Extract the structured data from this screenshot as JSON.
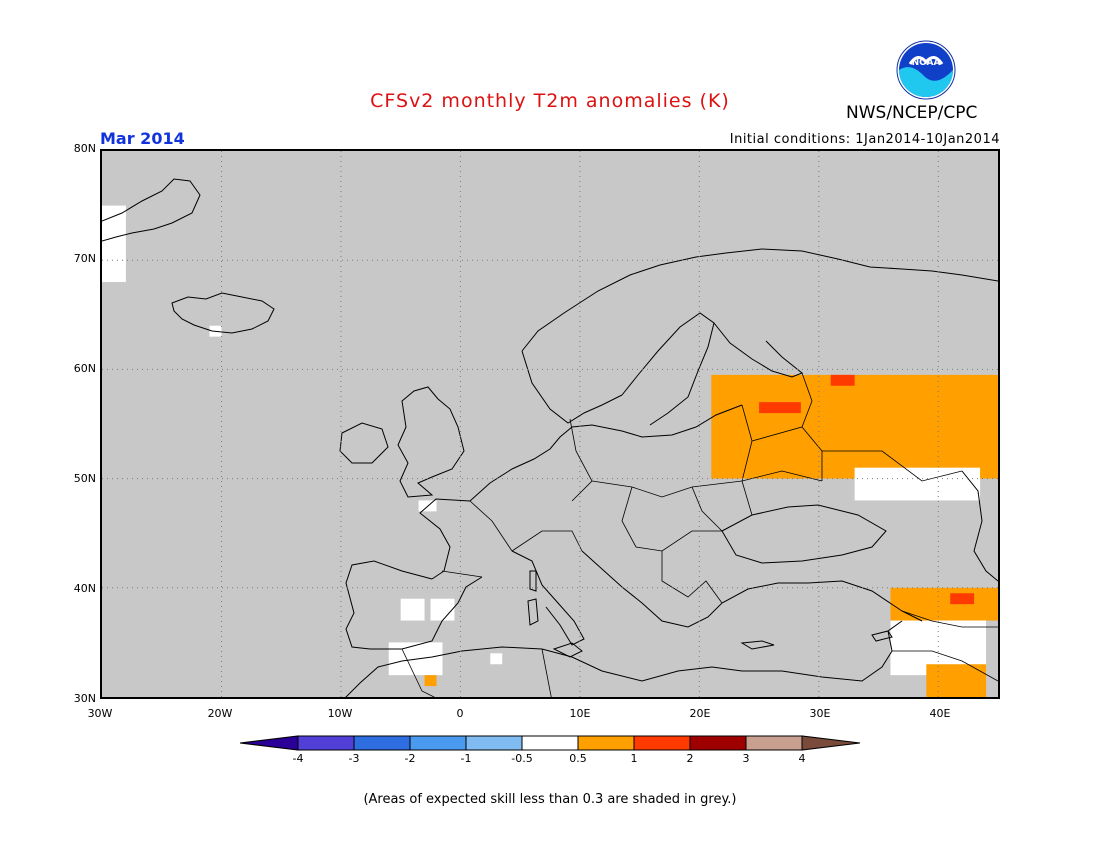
{
  "title": "CFSv2 monthly T2m anomalies (K)",
  "agency": "NWS/NCEP/CPC",
  "logo_text": "NOAA",
  "forecast_month": "Mar 2014",
  "initial_conditions": "Initial conditions: 1Jan2014-10Jan2014",
  "colors": {
    "title": "#dd1111",
    "month": "#1133dd",
    "skill_mask": "#c8c8c8",
    "grid": "#7a7a7a"
  },
  "map": {
    "projection": "equirectangular",
    "lon_range": [
      -30,
      45
    ],
    "lat_range": [
      30,
      80
    ],
    "grid_lines": "dotted",
    "lat_labels": [
      "80N",
      "70N",
      "60N",
      "50N",
      "40N",
      "30N"
    ],
    "lon_labels": [
      "30W",
      "20W",
      "10W",
      "0",
      "10E",
      "20E",
      "30E",
      "40E"
    ]
  },
  "anomaly_regions": [
    {
      "name": "western-russia",
      "category": "0.5 to 1",
      "color": "#ff9f00",
      "lon": [
        21,
        45
      ],
      "lat": [
        50,
        59.5
      ]
    },
    {
      "name": "russia-warm-core-1",
      "category": "1 to 2",
      "color": "#ff3a00",
      "lon": [
        31,
        33
      ],
      "lat": [
        58.5,
        59.5
      ]
    },
    {
      "name": "baltic-warm-core",
      "category": "1 to 2",
      "color": "#ff3a00",
      "lon": [
        25,
        28.5
      ],
      "lat": [
        56,
        57
      ]
    },
    {
      "name": "volga-neutral",
      "category": "-0.5 to 0.5",
      "color": "#ffffff",
      "lon": [
        33,
        43.5
      ],
      "lat": [
        48,
        51
      ]
    },
    {
      "name": "iberia-neutral-1",
      "category": "-0.5 to 0.5",
      "color": "#ffffff",
      "lon": [
        -5,
        -3
      ],
      "lat": [
        37,
        39
      ]
    },
    {
      "name": "iberia-neutral-2",
      "category": "-0.5 to 0.5",
      "color": "#ffffff",
      "lon": [
        -2.5,
        -0.5
      ],
      "lat": [
        37,
        39
      ]
    },
    {
      "name": "morocco-neutral",
      "category": "-0.5 to 0.5",
      "color": "#ffffff",
      "lon": [
        -6,
        -1.5
      ],
      "lat": [
        32,
        35
      ]
    },
    {
      "name": "algeria-neutral",
      "category": "-0.5 to 0.5",
      "color": "#ffffff",
      "lon": [
        2.5,
        3.5
      ],
      "lat": [
        33,
        34
      ]
    },
    {
      "name": "morocco-warm",
      "category": "0.5 to 1",
      "color": "#ff9f00",
      "lon": [
        -3,
        -2
      ],
      "lat": [
        31,
        32
      ]
    },
    {
      "name": "france-neutral",
      "category": "-0.5 to 0.5",
      "color": "#ffffff",
      "lon": [
        -3.5,
        -2
      ],
      "lat": [
        47,
        48
      ]
    },
    {
      "name": "iceland-neutral",
      "category": "-0.5 to 0.5",
      "color": "#ffffff",
      "lon": [
        -21,
        -20
      ],
      "lat": [
        63,
        64
      ]
    },
    {
      "name": "greenland-neutral",
      "category": "-0.5 to 0.5",
      "color": "#ffffff",
      "lon": [
        -30,
        -28
      ],
      "lat": [
        68,
        75
      ]
    },
    {
      "name": "east-turkey-warm",
      "category": "0.5 to 1",
      "color": "#ff9f00",
      "lon": [
        36,
        45
      ],
      "lat": [
        37,
        40
      ]
    },
    {
      "name": "caucasus-warm-core",
      "category": "1 to 2",
      "color": "#ff3a00",
      "lon": [
        41,
        43
      ],
      "lat": [
        38.5,
        39.5
      ]
    },
    {
      "name": "levant-neutral",
      "category": "-0.5 to 0.5",
      "color": "#ffffff",
      "lon": [
        36,
        44
      ],
      "lat": [
        32,
        37
      ]
    },
    {
      "name": "mesopotamia-warm",
      "category": "0.5 to 1",
      "color": "#ff9f00",
      "lon": [
        39,
        44
      ],
      "lat": [
        30,
        33
      ]
    }
  ],
  "colorbar": {
    "colors": [
      "#2a0098",
      "#5040d8",
      "#2e6ee0",
      "#4a9af0",
      "#80bcf2",
      "#ffffff",
      "#ff9f00",
      "#ff3a00",
      "#9e0000",
      "#c8a090",
      "#7a4a3a"
    ],
    "labels": [
      "-4",
      "-3",
      "-2",
      "-1",
      "-0.5",
      "0.5",
      "1",
      "2",
      "3",
      "4"
    ]
  },
  "footnote": "(Areas of expected skill less than 0.3 are shaded in grey.)"
}
